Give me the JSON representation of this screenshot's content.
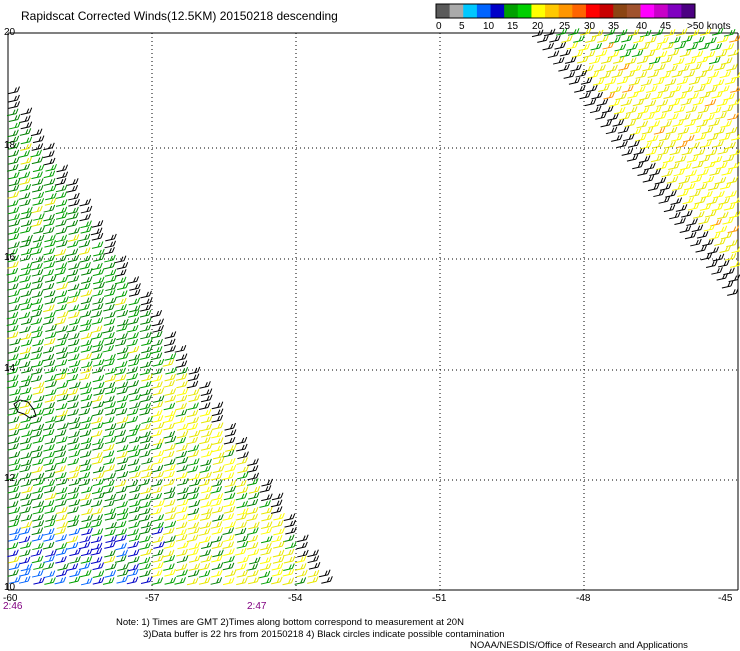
{
  "title": "Rapidscat Corrected Winds(12.5KM) 20150218 descending",
  "colorbar": {
    "colors": [
      "#5a5a5a",
      "#aaaaaa",
      "#00c8ff",
      "#0064ff",
      "#0000c8",
      "#00a000",
      "#00d000",
      "#ffff00",
      "#ffc800",
      "#ff9600",
      "#ff6400",
      "#ff0000",
      "#c80000",
      "#8b4513",
      "#a0522d",
      "#ff00ff",
      "#c800c8",
      "#8000c0",
      "#4b0082"
    ],
    "labels": [
      "0",
      "5",
      "10",
      "15",
      "20",
      "25",
      "30",
      "35",
      "40",
      "45",
      ">50 knots"
    ]
  },
  "axes": {
    "lat_labels": [
      "20",
      "18",
      "16",
      "14",
      "12",
      "10"
    ],
    "lon_labels": [
      "-60",
      "-57",
      "-54",
      "-51",
      "-48",
      "-45"
    ]
  },
  "times": {
    "left": "2:46",
    "right": "2:47"
  },
  "notes": {
    "line1": "Note: 1) Times are GMT 2)Times along bottom correspond to measurement at 20N",
    "line2": "3)Data buffer is 22 hrs from 20150218 4) Black circles indicate possible contamination",
    "line3": "NOAA/NESDIS/Office of Research and Applications"
  }
}
